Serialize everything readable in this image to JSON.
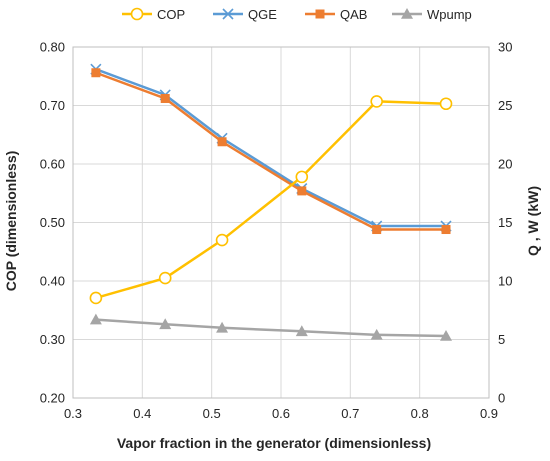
{
  "chart_data": {
    "type": "line",
    "xlabel": "Vapor fraction in the generator (dimensionless)",
    "ylabel_left": "COP (dimensionless)",
    "ylabel_right": "Q , W  (kW)",
    "xlim": [
      0.3,
      0.9
    ],
    "ylim_left": [
      0.2,
      0.8
    ],
    "ylim_right": [
      0,
      30
    ],
    "x_ticks": [
      "0.3",
      "0.4",
      "0.5",
      "0.6",
      "0.7",
      "0.8",
      "0.9"
    ],
    "y_left_ticks": [
      "0.20",
      "0.30",
      "0.40",
      "0.50",
      "0.60",
      "0.70",
      "0.80"
    ],
    "y_right_ticks": [
      "0",
      "5",
      "10",
      "15",
      "20",
      "25",
      "30"
    ],
    "grid": true,
    "legend_position": "top",
    "x": [
      0.333,
      0.433,
      0.515,
      0.63,
      0.738,
      0.838
    ],
    "series": [
      {
        "name": "COP",
        "axis": "left",
        "color": "#FFC000",
        "marker": "open-circle",
        "values": [
          0.371,
          0.405,
          0.47,
          0.578,
          0.707,
          0.703
        ]
      },
      {
        "name": "QGE",
        "axis": "right",
        "color": "#5B9BD5",
        "marker": "x",
        "values": [
          28.1,
          25.9,
          22.2,
          17.9,
          14.7,
          14.7
        ]
      },
      {
        "name": "QAB",
        "axis": "right",
        "color": "#ED7D31",
        "marker": "square",
        "values": [
          27.8,
          25.6,
          21.9,
          17.7,
          14.4,
          14.4
        ]
      },
      {
        "name": "Wpump",
        "axis": "right",
        "color": "#A5A5A5",
        "marker": "triangle",
        "values": [
          6.7,
          6.3,
          6.0,
          5.7,
          5.4,
          5.3
        ]
      }
    ]
  }
}
